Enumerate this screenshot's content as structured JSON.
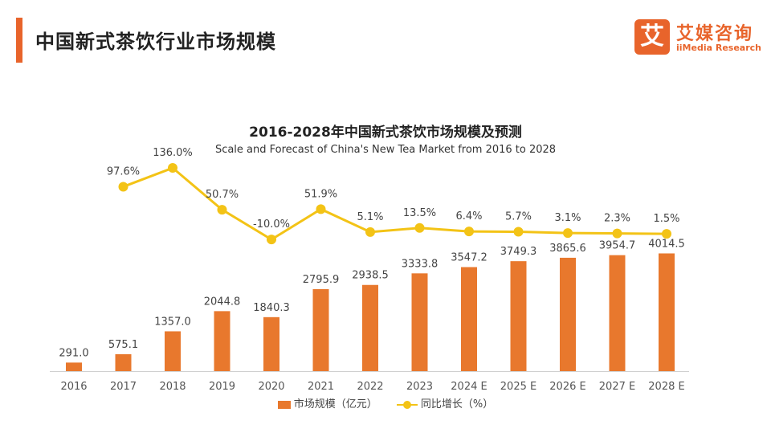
{
  "header": {
    "title": "中国新式茶饮行业市场规模",
    "logo_mark": "艾",
    "logo_cn": "艾媒咨询",
    "logo_en": "iiMedia Research"
  },
  "colors": {
    "accent": "#e8642b",
    "bar": "#e8782d",
    "line": "#f3c316"
  },
  "chart_data": {
    "type": "bar",
    "title": "2016-2028年中国新式茶饮市场规模及预测",
    "subtitle": "Scale and Forecast of China's New Tea Market from 2016 to 2028",
    "categories": [
      "2016",
      "2017",
      "2018",
      "2019",
      "2020",
      "2021",
      "2022",
      "2023",
      "2024 E",
      "2025 E",
      "2026 E",
      "2027 E",
      "2028 E"
    ],
    "series": [
      {
        "name": "市场规模（亿元）",
        "type": "bar",
        "values": [
          291.0,
          575.1,
          1357.0,
          2044.8,
          1840.3,
          2795.9,
          2938.5,
          3333.8,
          3547.2,
          3749.3,
          3865.6,
          3954.7,
          4014.5
        ],
        "labels": [
          "291.0",
          "575.1",
          "1357.0",
          "2044.8",
          "1840.3",
          "2795.9",
          "2938.5",
          "3333.8",
          "3547.2",
          "3749.3",
          "3865.6",
          "3954.7",
          "4014.5"
        ]
      },
      {
        "name": "同比增长（%）",
        "type": "line",
        "values": [
          null,
          97.6,
          136.0,
          50.7,
          -10.0,
          51.9,
          5.1,
          13.5,
          6.4,
          5.7,
          3.1,
          2.3,
          1.5
        ],
        "labels": [
          "",
          "97.6%",
          "136.0%",
          "50.7%",
          "-10.0%",
          "51.9%",
          "5.1%",
          "13.5%",
          "6.4%",
          "5.7%",
          "3.1%",
          "2.3%",
          "1.5%"
        ]
      }
    ],
    "legend": "bottom",
    "grid": false
  }
}
